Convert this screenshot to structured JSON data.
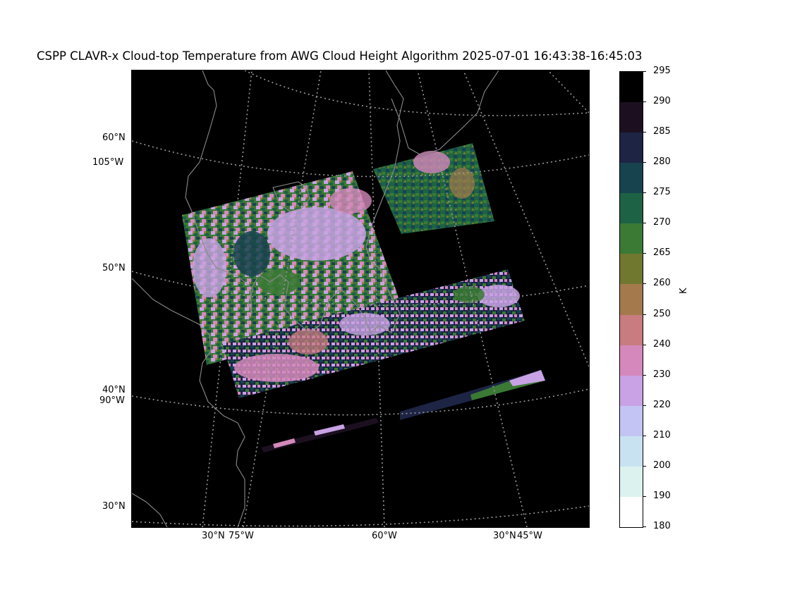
{
  "title": "CSPP CLAVR-x Cloud-top Temperature from AWG Cloud Height Algorithm 2025-07-01 16:43:38-16:45:03",
  "axis_labels": {
    "left": [
      "60°N",
      "105°W",
      "50°N",
      "40°N",
      "90°W",
      "30°N"
    ],
    "bottom": [
      "30°N",
      "75°W",
      "60°W",
      "30°N",
      "45°W"
    ]
  },
  "colorbar": {
    "unit": "K",
    "ticks": [
      "295",
      "290",
      "285",
      "280",
      "275",
      "270",
      "265",
      "260",
      "250",
      "240",
      "230",
      "220",
      "210",
      "200",
      "190",
      "180"
    ],
    "colors": [
      "#000000",
      "#1c1020",
      "#1d2444",
      "#17434f",
      "#1d6244",
      "#3a7a34",
      "#707830",
      "#a47a4d",
      "#c87c80",
      "#d488bb",
      "#c8a2e4",
      "#c4c4f4",
      "#c8e2f2",
      "#dcf2ee",
      "#ffffff"
    ]
  },
  "colors": {
    "map_background": "#000000",
    "coastline": "#8a8a8a",
    "graticule": "#9a9a9a"
  }
}
